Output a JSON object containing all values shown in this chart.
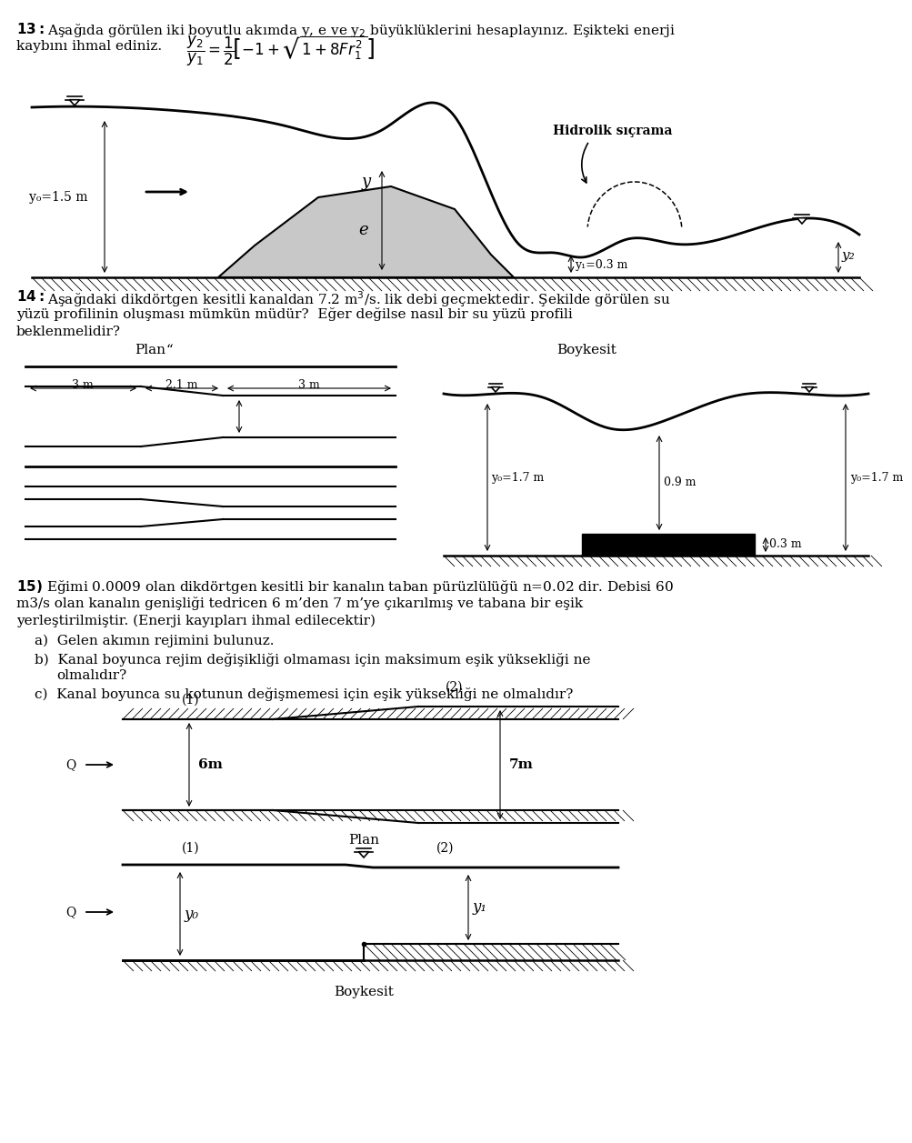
{
  "bg_color": "#ffffff",
  "text_color": "#000000",
  "gray_fill": "#c8c8c8",
  "label_y0_15": "y₀=1.5 m",
  "label_y": "y",
  "label_e": "e",
  "label_y1_03": "y₁=0.3 m",
  "label_y2": "y₂",
  "label_hidrolik": "Hidrolik sıçrama",
  "dim_3m_left": "3 m",
  "dim_21m": "2.1 m",
  "dim_3m_right": "3 m",
  "dim_y0_17_left": "y₀=1.7 m",
  "dim_09m": "0.9 m",
  "dim_y0_17_right": "y₀=1.7 m",
  "dim_03m": "0.3 m",
  "plan_label": "Plan",
  "boykesit_label": "Boykesit",
  "label_6m": "6m",
  "label_7m": "7m",
  "label_1": "(1)",
  "label_2": "(2)",
  "label_y0_boy": "y₀",
  "label_y1_boy": "y₁",
  "Q_label": "Q"
}
